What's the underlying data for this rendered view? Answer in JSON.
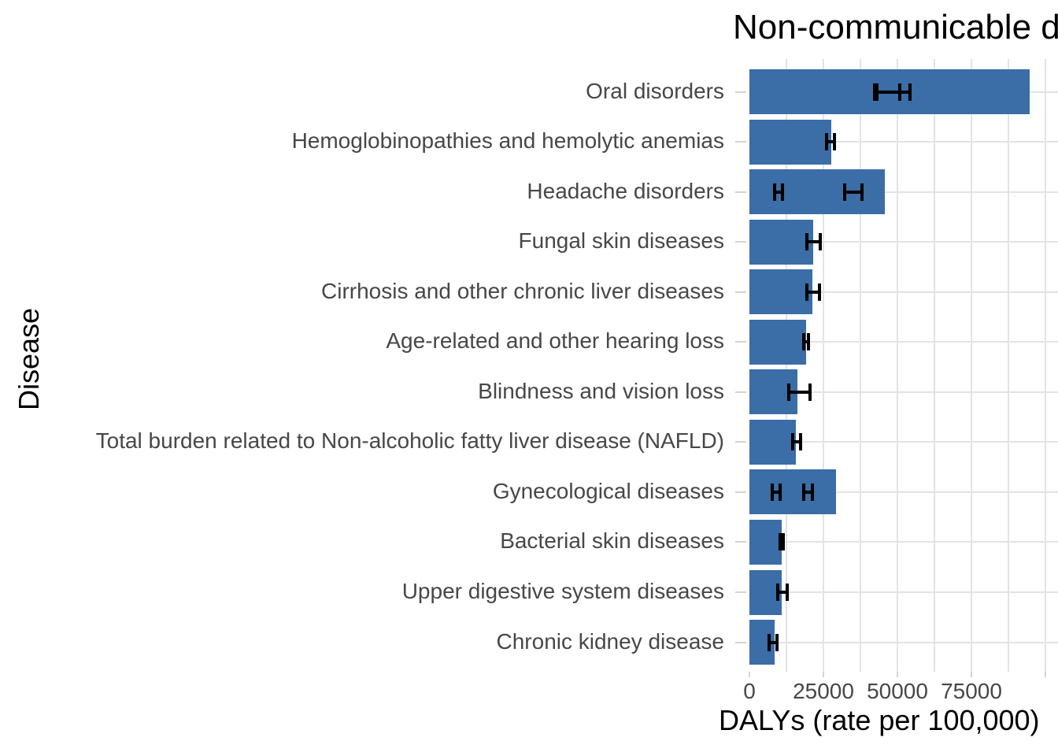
{
  "chart_data": {
    "type": "bar",
    "orientation": "horizontal",
    "title": "Non-communicable diseases",
    "title_visible_part": "Non-communicable d",
    "xlabel": "DALYs (rate per 100,000)",
    "ylabel": "Disease",
    "categories": [
      "Oral disorders",
      "Hemoglobinopathies and hemolytic anemias",
      "Headache disorders",
      "Fungal skin diseases",
      "Cirrhosis and other chronic liver diseases",
      "Age-related and other hearing loss",
      "Blindness and vision loss",
      "Total burden related to Non-alcoholic fatty liver disease (NAFLD)",
      "Gynecological diseases",
      "Bacterial skin diseases",
      "Upper digestive system diseases",
      "Chronic kidney disease"
    ],
    "values": [
      94700,
      27700,
      45700,
      21500,
      21300,
      19100,
      16200,
      15700,
      29200,
      10900,
      10900,
      8500
    ],
    "error_bars": [
      [
        [
          42300,
          50800
        ],
        [
          43000,
          54300
        ]
      ],
      [
        [
          26100,
          28700
        ]
      ],
      [
        [
          8600,
          11300
        ],
        [
          32100,
          38000
        ]
      ],
      [
        [
          19400,
          23900
        ]
      ],
      [
        [
          19400,
          23700
        ]
      ],
      [
        [
          18400,
          20000
        ]
      ],
      [
        [
          13300,
          20500
        ]
      ],
      [
        [
          14600,
          17300
        ]
      ],
      [
        [
          7700,
          10400
        ],
        [
          18400,
          21400
        ]
      ],
      [
        [
          10400,
          11400
        ]
      ],
      [
        [
          9600,
          12800
        ]
      ],
      [
        [
          6600,
          9300
        ]
      ]
    ],
    "x_ticks": [
      0,
      25000,
      50000,
      75000
    ],
    "x_tick_labels": [
      "0",
      "25000",
      "50000",
      "75000"
    ],
    "xlim": [
      0,
      104300
    ],
    "gridlines_major": [
      25000,
      50000,
      75000,
      100000
    ],
    "gridlines_minor": [
      12500,
      37500,
      62500,
      87500
    ],
    "grid_on": true,
    "legend": "none",
    "colors": {
      "bar_fill": "#3B6DA6",
      "error_bar": "#000000",
      "gridline": "#E3E3E3",
      "axis_tick": "#D4D4D4",
      "axis_text": "#474747",
      "title_text": "#000000"
    }
  }
}
